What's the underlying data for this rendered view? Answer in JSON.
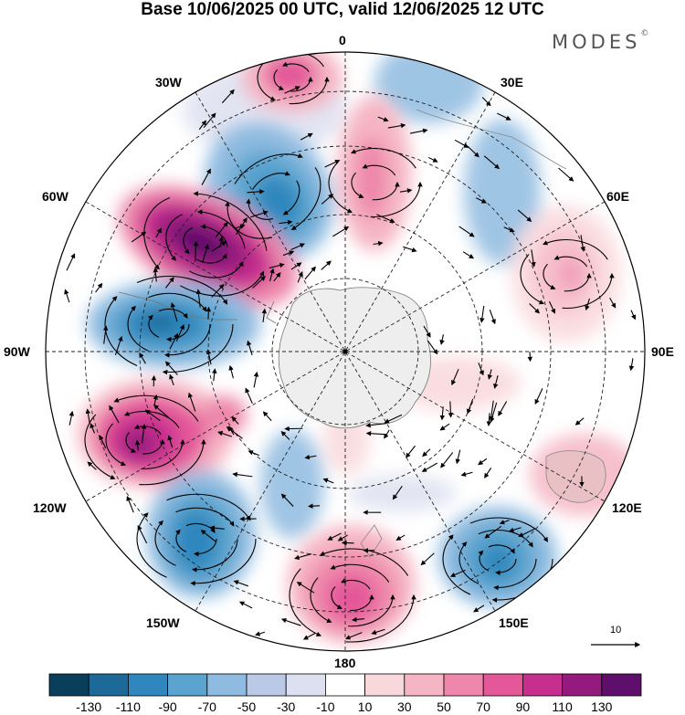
{
  "title": "Base 10/06/2025 00 UTC, valid 12/06/2025 12 UTC",
  "brand": {
    "name": "MODES",
    "mark": "©"
  },
  "map": {
    "projection": "south polar stereographic",
    "center": "South Pole",
    "longitude_labels": {
      "top": "0",
      "top_right": "30E",
      "upper_right": "60E",
      "right": "90E",
      "lower_right": "120E",
      "bottom_right": "150E",
      "bottom": "180",
      "bottom_left": "150W",
      "lower_left": "120W",
      "left": "90W",
      "upper_left": "60W",
      "top_left": "30W"
    },
    "wind_reference_vector": "10",
    "anomaly_centers": [
      {
        "name": "negative-anomaly-northwest",
        "sign": "negative",
        "level": -90
      },
      {
        "name": "positive-anomaly-upper-left",
        "sign": "positive",
        "level": 130
      },
      {
        "name": "negative-anomaly-left",
        "sign": "negative",
        "level": -110
      },
      {
        "name": "positive-anomaly-lower-left",
        "sign": "positive",
        "level": 110
      },
      {
        "name": "negative-anomaly-bottom-left",
        "sign": "negative",
        "level": -110
      },
      {
        "name": "positive-anomaly-bottom",
        "sign": "positive",
        "level": 90
      },
      {
        "name": "negative-anomaly-bottom-right",
        "sign": "negative",
        "level": -90
      },
      {
        "name": "positive-anomaly-top",
        "sign": "positive",
        "level": 70
      },
      {
        "name": "positive-anomaly-right",
        "sign": "positive",
        "level": 50
      }
    ]
  },
  "colorbar": {
    "colors": [
      "#0a3f5c",
      "#1d6a99",
      "#2f87bd",
      "#5ba4cf",
      "#8fbbe0",
      "#bac9e6",
      "#dde0f0",
      "#ffffff",
      "#f9d8dc",
      "#f5b5c4",
      "#ee87ab",
      "#e4589a",
      "#c72f8e",
      "#941a7d",
      "#5d0f6b"
    ],
    "ticks": [
      "-130",
      "-110",
      "-90",
      "-70",
      "-50",
      "-30",
      "-10",
      "10",
      "30",
      "50",
      "70",
      "90",
      "110",
      "130"
    ]
  }
}
